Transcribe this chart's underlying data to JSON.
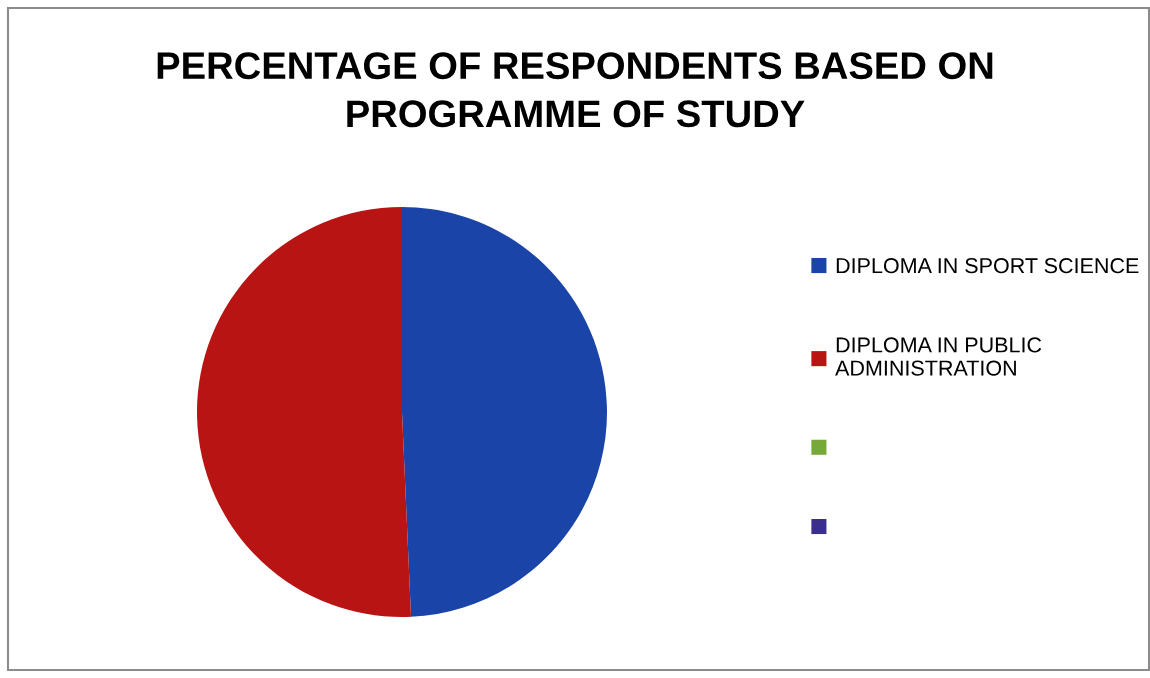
{
  "chart_data": {
    "type": "pie",
    "title": "PERCENTAGE OF RESPONDENTS BASED ON\nPROGRAMME OF STUDY",
    "categories": [
      "DIPLOMA IN SPORT SCIENCE",
      "DIPLOMA IN PUBLIC\nADMINISTRATION",
      null,
      null
    ],
    "values": [
      49.3,
      50.7,
      0,
      0
    ],
    "colors": [
      "#1a44a8",
      "#b81414",
      "#77a83a",
      "#3b2f8e"
    ],
    "legend": "right"
  }
}
